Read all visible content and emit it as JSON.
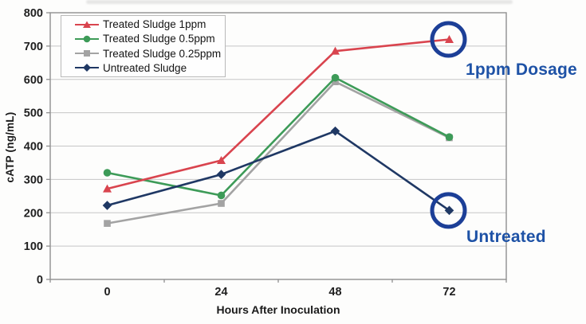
{
  "chart_data": {
    "type": "line",
    "title": "",
    "xlabel": "Hours After Inoculation",
    "ylabel": "cATP (ng/mL)",
    "x": [
      "0",
      "24",
      "48",
      "72"
    ],
    "ylim": [
      0,
      800
    ],
    "ytick_step": 100,
    "grid": "horizontal",
    "legend_position": "top-left-inside",
    "series": [
      {
        "name": "Treated Sludge 1ppm",
        "color": "#d9444e",
        "marker": "triangle",
        "values": [
          272,
          357,
          685,
          720
        ]
      },
      {
        "name": "Treated Sludge 0.5ppm",
        "color": "#3d9b58",
        "marker": "circle",
        "values": [
          320,
          252,
          605,
          427
        ]
      },
      {
        "name": "Treated Sludge 0.25ppm",
        "color": "#a3a3a3",
        "marker": "square",
        "values": [
          168,
          228,
          593,
          425
        ]
      },
      {
        "name": "Untreated Sludge",
        "color": "#1f3864",
        "marker": "diamond",
        "values": [
          222,
          315,
          445,
          207
        ]
      }
    ],
    "z_order": [
      2,
      1,
      0,
      3
    ],
    "annotations": [
      {
        "label": "1ppm Dosage",
        "series": 0,
        "point": 3
      },
      {
        "label": "Untreated",
        "series": 3,
        "point": 3
      }
    ],
    "colors": {
      "grid": "#c6c6c6",
      "axis": "#8f8f8f",
      "annotation_circle": "#1c3f97",
      "annotation_text": "#1e52a6",
      "tick_text": "#1f1f1f"
    }
  }
}
